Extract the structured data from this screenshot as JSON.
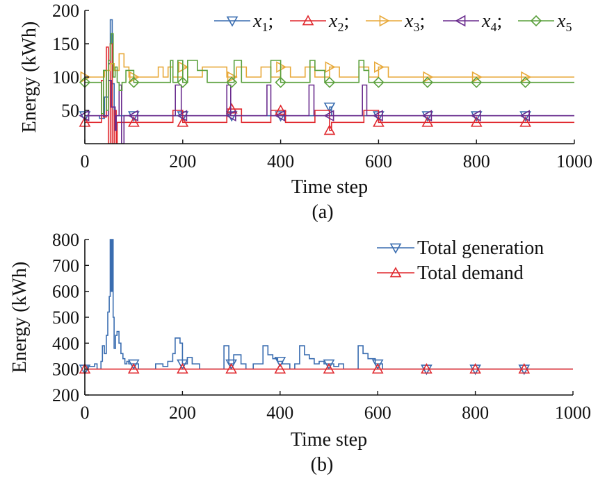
{
  "chart_data": [
    {
      "type": "line",
      "panel": "a",
      "caption": "(a)",
      "xlabel": "Time step",
      "ylabel": "Energy (kWh)",
      "title": "",
      "xlim": [
        0,
        1000
      ],
      "ylim": [
        0,
        200
      ],
      "x_ticks": [
        0,
        200,
        400,
        600,
        800,
        1000
      ],
      "y_ticks": [
        50,
        100,
        150,
        200
      ],
      "grid": false,
      "legend_position": "top-right",
      "series": [
        {
          "name": "x1",
          "legend_base": "x",
          "legend_sub": "1",
          "legend_suffix": ";",
          "color": "#3a6db0",
          "marker": "triangle-down",
          "marker_x": [
            0,
            100,
            200,
            300,
            400,
            500,
            600,
            700,
            800,
            900
          ],
          "x": [
            0,
            30,
            30,
            40,
            40,
            48,
            48,
            52,
            52,
            56,
            56,
            60,
            60,
            64,
            64,
            500,
            500,
            504,
            504,
            1000
          ],
          "y": [
            42,
            42,
            38,
            38,
            70,
            70,
            120,
            120,
            186,
            186,
            90,
            90,
            42,
            42,
            42,
            42,
            55,
            55,
            42,
            42
          ]
        },
        {
          "name": "x2",
          "legend_base": "x",
          "legend_sub": "2",
          "legend_suffix": ";",
          "color": "#e0282e",
          "marker": "triangle-up",
          "marker_x": [
            0,
            100,
            200,
            300,
            400,
            500,
            600,
            700,
            800,
            900
          ],
          "x": [
            0,
            34,
            34,
            38,
            38,
            44,
            44,
            48,
            48,
            52,
            52,
            56,
            56,
            60,
            60,
            64,
            64,
            66,
            66,
            180,
            180,
            200,
            200,
            290,
            290,
            320,
            320,
            380,
            380,
            410,
            410,
            470,
            470,
            500,
            500,
            504,
            504,
            570,
            570,
            600,
            600,
            1000
          ],
          "y": [
            32,
            32,
            95,
            95,
            40,
            40,
            145,
            145,
            0,
            0,
            150,
            150,
            0,
            0,
            50,
            50,
            0,
            0,
            32,
            32,
            50,
            50,
            32,
            32,
            52,
            52,
            32,
            32,
            50,
            50,
            32,
            32,
            50,
            50,
            20,
            20,
            32,
            32,
            50,
            50,
            32,
            32
          ]
        },
        {
          "name": "x3",
          "legend_base": "x",
          "legend_sub": "3",
          "legend_suffix": ";",
          "color": "#e8a93a",
          "marker": "triangle-right",
          "marker_x": [
            0,
            100,
            200,
            300,
            400,
            500,
            600,
            700,
            800,
            900
          ],
          "x": [
            0,
            40,
            40,
            52,
            52,
            60,
            60,
            70,
            70,
            80,
            80,
            90,
            90,
            150,
            150,
            160,
            160,
            170,
            170,
            180,
            180,
            200,
            200,
            210,
            210,
            240,
            240,
            290,
            290,
            310,
            310,
            330,
            330,
            360,
            360,
            380,
            380,
            400,
            400,
            420,
            420,
            450,
            450,
            470,
            470,
            500,
            500,
            520,
            520,
            560,
            560,
            580,
            580,
            600,
            600,
            620,
            620,
            1000
          ],
          "y": [
            100,
            100,
            110,
            110,
            120,
            120,
            110,
            110,
            135,
            135,
            115,
            115,
            100,
            100,
            115,
            115,
            100,
            100,
            115,
            115,
            100,
            100,
            115,
            115,
            100,
            100,
            115,
            115,
            100,
            100,
            115,
            115,
            100,
            100,
            115,
            115,
            100,
            100,
            115,
            115,
            100,
            100,
            115,
            115,
            100,
            100,
            115,
            115,
            100,
            100,
            115,
            115,
            100,
            100,
            115,
            115,
            100,
            100
          ]
        },
        {
          "name": "x4",
          "legend_base": "x",
          "legend_sub": "4",
          "legend_suffix": ";",
          "color": "#6a2c8e",
          "marker": "triangle-left",
          "marker_x": [
            0,
            100,
            200,
            300,
            400,
            500,
            600,
            700,
            800,
            900
          ],
          "x": [
            0,
            48,
            48,
            54,
            54,
            62,
            62,
            64,
            64,
            70,
            70,
            75,
            75,
            80,
            80,
            185,
            185,
            197,
            197,
            290,
            290,
            298,
            298,
            372,
            372,
            380,
            380,
            458,
            458,
            468,
            468,
            567,
            567,
            576,
            576,
            1000
          ],
          "y": [
            42,
            42,
            95,
            95,
            55,
            55,
            20,
            20,
            42,
            42,
            88,
            88,
            0,
            0,
            42,
            42,
            88,
            88,
            42,
            42,
            88,
            88,
            42,
            42,
            88,
            88,
            42,
            42,
            88,
            88,
            42,
            42,
            88,
            88,
            42,
            42
          ]
        },
        {
          "name": "x5",
          "legend_base": "x",
          "legend_sub": "5",
          "legend_suffix": "",
          "color": "#5aa03c",
          "marker": "diamond",
          "marker_x": [
            0,
            100,
            200,
            300,
            400,
            500,
            600,
            700,
            800,
            900
          ],
          "x": [
            0,
            34,
            34,
            38,
            38,
            44,
            44,
            48,
            48,
            52,
            52,
            54,
            54,
            58,
            58,
            62,
            62,
            66,
            66,
            70,
            70,
            76,
            76,
            84,
            84,
            100,
            100,
            175,
            175,
            180,
            180,
            190,
            190,
            200,
            200,
            210,
            210,
            230,
            230,
            250,
            250,
            305,
            305,
            320,
            320,
            380,
            380,
            400,
            400,
            460,
            460,
            470,
            470,
            490,
            490,
            560,
            560,
            570,
            570,
            580,
            580,
            1000
          ],
          "y": [
            92,
            92,
            45,
            45,
            110,
            110,
            50,
            50,
            125,
            125,
            150,
            150,
            165,
            165,
            100,
            100,
            115,
            115,
            92,
            92,
            80,
            80,
            92,
            92,
            110,
            110,
            92,
            92,
            125,
            125,
            92,
            92,
            125,
            125,
            92,
            92,
            125,
            125,
            110,
            110,
            92,
            92,
            125,
            125,
            92,
            92,
            125,
            125,
            92,
            92,
            125,
            125,
            110,
            110,
            92,
            92,
            125,
            125,
            110,
            110,
            92,
            92
          ]
        }
      ]
    },
    {
      "type": "line",
      "panel": "b",
      "caption": "(b)",
      "xlabel": "Time step",
      "ylabel": "Energy (kWh)",
      "title": "",
      "xlim": [
        0,
        1000
      ],
      "ylim": [
        200,
        800
      ],
      "x_ticks": [
        0,
        200,
        400,
        600,
        800,
        1000
      ],
      "y_ticks": [
        200,
        300,
        400,
        500,
        600,
        700,
        800
      ],
      "grid": false,
      "legend_position": "top-right",
      "series": [
        {
          "name": "Total generation",
          "color": "#3a6db0",
          "marker": "triangle-down",
          "marker_x": [
            0,
            100,
            200,
            300,
            400,
            500,
            600,
            700,
            800,
            900
          ],
          "x": [
            0,
            5,
            5,
            20,
            20,
            25,
            25,
            33,
            33,
            36,
            36,
            40,
            40,
            44,
            44,
            47,
            47,
            50,
            50,
            52,
            52,
            54,
            54,
            56,
            56,
            58,
            58,
            60,
            60,
            63,
            63,
            66,
            66,
            70,
            70,
            74,
            74,
            78,
            78,
            82,
            82,
            86,
            86,
            90,
            90,
            110,
            110,
            145,
            145,
            160,
            160,
            170,
            170,
            180,
            180,
            185,
            185,
            195,
            195,
            200,
            200,
            210,
            210,
            220,
            220,
            235,
            235,
            285,
            285,
            295,
            295,
            305,
            305,
            320,
            320,
            330,
            330,
            345,
            345,
            365,
            365,
            375,
            375,
            385,
            385,
            395,
            395,
            405,
            405,
            420,
            420,
            430,
            430,
            440,
            440,
            450,
            450,
            460,
            460,
            470,
            470,
            480,
            480,
            490,
            490,
            510,
            510,
            520,
            520,
            530,
            530,
            560,
            560,
            570,
            570,
            580,
            580,
            595,
            595,
            610,
            610,
            1000
          ],
          "y": [
            300,
            300,
            310,
            310,
            320,
            320,
            300,
            300,
            330,
            330,
            390,
            390,
            360,
            360,
            430,
            430,
            520,
            520,
            580,
            580,
            800,
            800,
            600,
            600,
            800,
            800,
            500,
            500,
            380,
            380,
            430,
            430,
            445,
            445,
            400,
            400,
            360,
            360,
            340,
            340,
            320,
            320,
            330,
            330,
            320,
            320,
            300,
            300,
            320,
            320,
            310,
            310,
            330,
            330,
            360,
            360,
            420,
            420,
            400,
            400,
            320,
            320,
            345,
            345,
            320,
            320,
            300,
            300,
            390,
            390,
            320,
            320,
            355,
            355,
            320,
            320,
            300,
            300,
            320,
            320,
            390,
            390,
            355,
            355,
            340,
            340,
            330,
            330,
            320,
            320,
            300,
            300,
            320,
            320,
            390,
            390,
            355,
            355,
            340,
            340,
            320,
            320,
            330,
            330,
            320,
            320,
            310,
            310,
            320,
            320,
            300,
            300,
            390,
            390,
            360,
            360,
            340,
            340,
            320,
            320,
            300,
            300
          ]
        },
        {
          "name": "Total demand",
          "color": "#e0282e",
          "marker": "triangle-up",
          "marker_x": [
            0,
            100,
            200,
            300,
            400,
            500,
            600,
            700,
            800,
            900
          ],
          "x": [
            0,
            1000
          ],
          "y": [
            300,
            300
          ]
        }
      ]
    }
  ]
}
